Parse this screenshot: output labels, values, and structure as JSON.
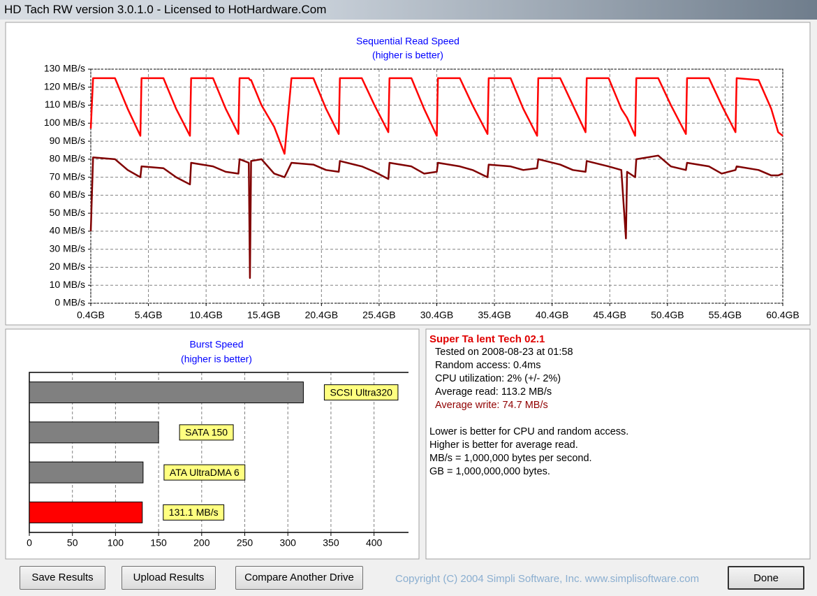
{
  "window": {
    "title": "HD Tach RW version 3.0.1.0 - Licensed to HotHardware.Com"
  },
  "chart_data": [
    {
      "type": "line",
      "title": "Sequential Read Speed",
      "subtitle": "(higher is better)",
      "x": [
        0.4,
        0.6,
        2.5,
        3.6,
        4.7,
        4.8,
        6.7,
        7.8,
        9.0,
        9.1,
        11.0,
        12.1,
        13.2,
        13.3,
        14.1,
        14.2,
        14.3,
        15.2,
        16.3,
        17.2,
        17.8,
        19.7,
        20.8,
        21.9,
        22.0,
        23.9,
        25.0,
        26.2,
        26.3,
        28.2,
        29.3,
        30.4,
        30.5,
        32.4,
        33.5,
        34.8,
        34.9,
        36.8,
        37.9,
        39.1,
        39.2,
        41.1,
        42.2,
        43.3,
        43.4,
        45.3,
        46.4,
        46.8,
        46.9,
        47.6,
        47.7,
        49.6,
        50.7,
        52.0,
        52.1,
        54.0,
        55.1,
        56.3,
        56.4,
        58.3,
        59.4,
        60.0,
        60.4
      ],
      "series": [
        {
          "color": "#ff0000",
          "values": [
            97,
            125,
            125,
            108,
            93,
            125,
            125,
            108,
            93,
            125,
            125,
            108,
            94,
            125,
            125,
            124,
            124,
            110,
            98,
            83,
            125,
            125,
            108,
            94,
            125,
            125,
            110,
            95,
            125,
            125,
            108,
            93,
            125,
            125,
            110,
            94,
            125,
            125,
            108,
            93,
            125,
            125,
            110,
            95,
            125,
            125,
            108,
            104,
            103,
            93,
            125,
            125,
            110,
            94,
            125,
            125,
            110,
            95,
            125,
            124,
            108,
            95,
            93
          ]
        },
        {
          "color": "#800000",
          "values": [
            40,
            81,
            80,
            74,
            70,
            76,
            75,
            70,
            66,
            78,
            76,
            73,
            72,
            80,
            78,
            14,
            79,
            80,
            72,
            70,
            78,
            77,
            74,
            73,
            79,
            76,
            73,
            69,
            78,
            76,
            72,
            73,
            78,
            76,
            74,
            70,
            77,
            76,
            74,
            75,
            80,
            77,
            74,
            73,
            79,
            76,
            74,
            36,
            73,
            70,
            80,
            82,
            76,
            74,
            78,
            76,
            72,
            74,
            76,
            74,
            71,
            71,
            72
          ]
        }
      ],
      "xlim": [
        0.4,
        60.4
      ],
      "xticks": [
        {
          "value": 0.4,
          "label": "0.4GB"
        },
        {
          "value": 5.4,
          "label": "5.4GB"
        },
        {
          "value": 10.4,
          "label": "10.4GB"
        },
        {
          "value": 15.4,
          "label": "15.4GB"
        },
        {
          "value": 20.4,
          "label": "20.4GB"
        },
        {
          "value": 25.4,
          "label": "25.4GB"
        },
        {
          "value": 30.4,
          "label": "30.4GB"
        },
        {
          "value": 35.4,
          "label": "35.4GB"
        },
        {
          "value": 40.4,
          "label": "40.4GB"
        },
        {
          "value": 45.4,
          "label": "45.4GB"
        },
        {
          "value": 50.4,
          "label": "50.4GB"
        },
        {
          "value": 55.4,
          "label": "55.4GB"
        },
        {
          "value": 60.4,
          "label": "60.4GB"
        }
      ],
      "ylim": [
        0,
        130
      ],
      "yticks": [
        {
          "value": 0,
          "label": "0 MB/s"
        },
        {
          "value": 10,
          "label": "10 MB/s"
        },
        {
          "value": 20,
          "label": "20 MB/s"
        },
        {
          "value": 30,
          "label": "30 MB/s"
        },
        {
          "value": 40,
          "label": "40 MB/s"
        },
        {
          "value": 50,
          "label": "50 MB/s"
        },
        {
          "value": 60,
          "label": "60 MB/s"
        },
        {
          "value": 70,
          "label": "70 MB/s"
        },
        {
          "value": 80,
          "label": "80 MB/s"
        },
        {
          "value": 90,
          "label": "90 MB/s"
        },
        {
          "value": 100,
          "label": "100 MB/s"
        },
        {
          "value": 110,
          "label": "110 MB/s"
        },
        {
          "value": 120,
          "label": "120 MB/s"
        },
        {
          "value": 130,
          "label": "130 MB/s"
        }
      ],
      "grid": true
    },
    {
      "type": "barh",
      "title": "Burst Speed",
      "subtitle": "(higher is better)",
      "categories": [
        "SCSI Ultra320",
        "SATA 150",
        "ATA UltraDMA 6",
        null
      ],
      "values": [
        318,
        150,
        132,
        131.1
      ],
      "value_labels": [
        null,
        null,
        null,
        "131.1 MB/s"
      ],
      "colors": [
        "#808080",
        "#808080",
        "#808080",
        "#ff0000"
      ],
      "xlim": [
        0,
        440
      ],
      "xticks": [
        0,
        50,
        100,
        150,
        200,
        250,
        300,
        350,
        400
      ],
      "grid": true
    }
  ],
  "results": {
    "drive": "Super Ta lent Tech 02.1",
    "lines": [
      "Tested on 2008-08-23 at 01:58",
      "Random access: 0.4ms",
      "CPU utilization: 2% (+/- 2%)",
      "Average read: 113.2 MB/s"
    ],
    "write_line": "Average write: 74.7 MB/s",
    "notes": [
      "Lower is better for CPU and random access.",
      "Higher is better for average read.",
      "MB/s = 1,000,000 bytes per second.",
      "GB = 1,000,000,000 bytes."
    ]
  },
  "buttons": [
    "Save Results",
    "Upload Results",
    "Compare Another Drive",
    "Done"
  ],
  "copyright": "Copyright (C) 2004 Simpli Software, Inc. www.simplisoftware.com"
}
